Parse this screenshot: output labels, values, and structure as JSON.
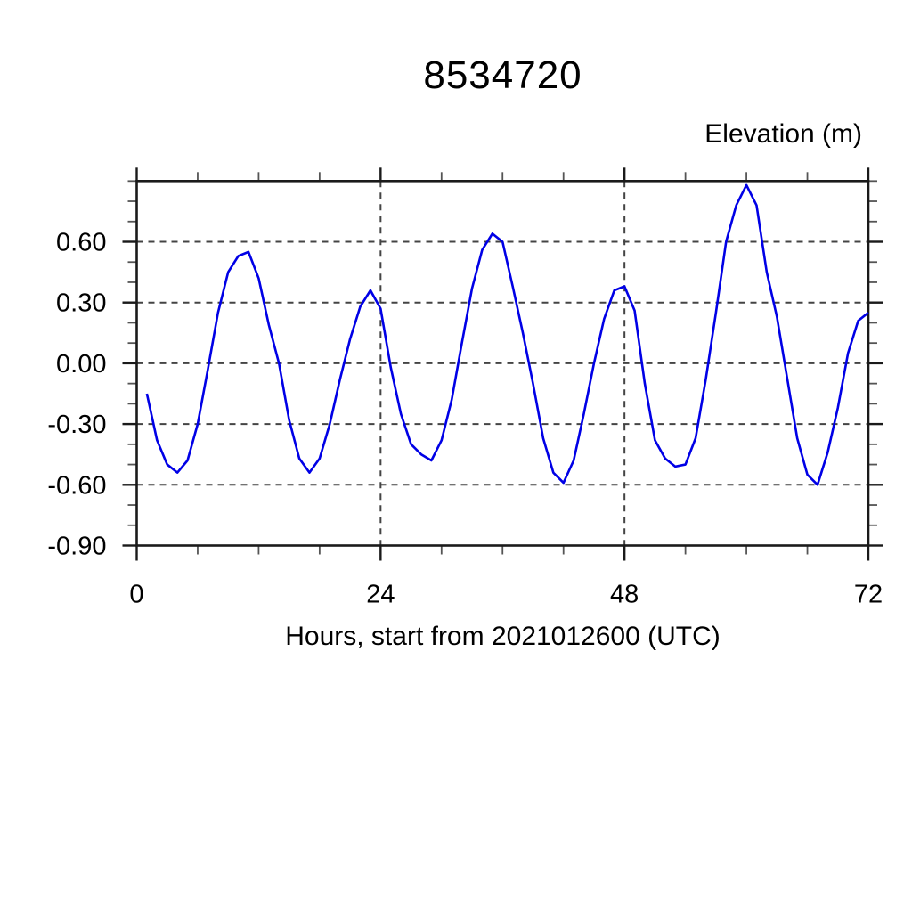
{
  "chart_data": {
    "type": "line",
    "title": "8534720",
    "ylabel": "Elevation (m)",
    "xlabel": "Hours, start from 2021012600 (UTC)",
    "xlim": [
      0,
      72
    ],
    "ylim": [
      -0.9,
      0.9
    ],
    "xticks": [
      0,
      24,
      48,
      72
    ],
    "xtick_labels": [
      "0",
      "24",
      "48",
      "72"
    ],
    "x_minor_step": 6,
    "yticks": [
      0.6,
      0.3,
      0.0,
      -0.3,
      -0.6,
      -0.9
    ],
    "ytick_labels": [
      "0.60",
      "0.30",
      "0.00",
      "-0.30",
      "-0.60",
      "-0.90"
    ],
    "y_minor_step": 0.1,
    "grid": {
      "x": [
        24,
        48
      ],
      "y": [
        0.6,
        0.3,
        0.0,
        -0.3,
        -0.6
      ],
      "style": "dashed"
    },
    "legend": null,
    "colors": {
      "line": "#0000e6",
      "frame": "#1a1a1a",
      "grid": "#444444",
      "text": "#000000"
    },
    "series": [
      {
        "name": "elevation",
        "x": [
          1,
          2,
          3,
          4,
          5,
          6,
          7,
          8,
          9,
          10,
          11,
          12,
          13,
          14,
          15,
          16,
          17,
          18,
          19,
          20,
          21,
          22,
          23,
          24,
          25,
          26,
          27,
          28,
          29,
          30,
          31,
          32,
          33,
          34,
          35,
          36,
          37,
          38,
          39,
          40,
          41,
          42,
          43,
          44,
          45,
          46,
          47,
          48,
          49,
          50,
          51,
          52,
          53,
          54,
          55,
          56,
          57,
          58,
          59,
          60,
          61,
          62,
          63,
          64,
          65,
          66,
          67,
          68,
          69,
          70,
          71,
          72
        ],
        "y": [
          -0.15,
          -0.38,
          -0.5,
          -0.54,
          -0.48,
          -0.3,
          -0.03,
          0.25,
          0.45,
          0.53,
          0.55,
          0.42,
          0.19,
          0.0,
          -0.28,
          -0.47,
          -0.54,
          -0.47,
          -0.3,
          -0.08,
          0.12,
          0.28,
          0.36,
          0.27,
          -0.02,
          -0.25,
          -0.4,
          -0.45,
          -0.48,
          -0.38,
          -0.18,
          0.1,
          0.37,
          0.56,
          0.64,
          0.6,
          0.38,
          0.15,
          -0.1,
          -0.37,
          -0.54,
          -0.59,
          -0.48,
          -0.25,
          0.0,
          0.22,
          0.36,
          0.38,
          0.26,
          -0.1,
          -0.38,
          -0.47,
          -0.51,
          -0.5,
          -0.37,
          -0.08,
          0.25,
          0.6,
          0.78,
          0.88,
          0.78,
          0.45,
          0.23,
          -0.07,
          -0.37,
          -0.55,
          -0.6,
          -0.44,
          -0.22,
          0.05,
          0.21,
          0.25
        ]
      }
    ]
  }
}
